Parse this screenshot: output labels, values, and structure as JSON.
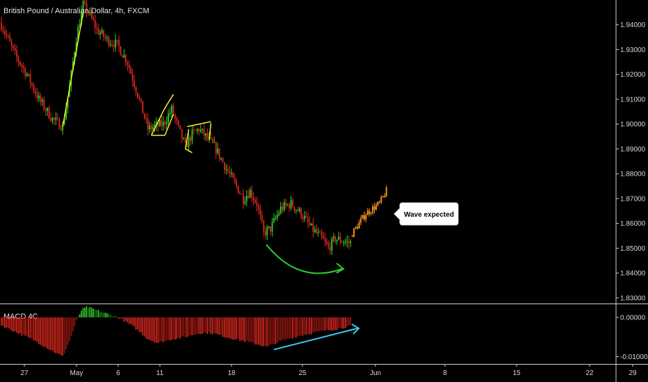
{
  "chart_data": {
    "type": "candlestick",
    "title": "British Pound / Australian Dollar, 4h, FXCM",
    "price_axis": {
      "ticks": [
        1.94,
        1.93,
        1.92,
        1.91,
        1.9,
        1.89,
        1.88,
        1.87,
        1.86,
        1.85,
        1.84,
        1.83
      ],
      "tick_labels": [
        "1.94000",
        "1.93000",
        "1.92000",
        "1.91000",
        "1.90000",
        "1.89000",
        "1.88000",
        "1.87000",
        "1.86000",
        "1.85000",
        "1.84000",
        "1.83000"
      ],
      "range": [
        1.828,
        1.95
      ]
    },
    "date_axis": {
      "labels": [
        "27",
        "May",
        "6",
        "11",
        "18",
        "25",
        "Jun",
        "8",
        "15",
        "22",
        "29"
      ]
    },
    "colors": {
      "up": "#36d12a",
      "down": "#e0281e",
      "projection": "#f7931a",
      "pattern": "#f4f22a",
      "arc": "#2ad12f",
      "divergence": "#3cc8f0"
    },
    "price_path": [
      {
        "bar": 0,
        "close": 1.94
      },
      {
        "bar": 8,
        "close": 1.928
      },
      {
        "bar": 15,
        "close": 1.92
      },
      {
        "bar": 22,
        "close": 1.91
      },
      {
        "bar": 30,
        "close": 1.902
      },
      {
        "bar": 36,
        "close": 1.899
      },
      {
        "bar": 40,
        "close": 1.915
      },
      {
        "bar": 44,
        "close": 1.935
      },
      {
        "bar": 48,
        "close": 1.948
      },
      {
        "bar": 52,
        "close": 1.944
      },
      {
        "bar": 56,
        "close": 1.938
      },
      {
        "bar": 62,
        "close": 1.934
      },
      {
        "bar": 68,
        "close": 1.932
      },
      {
        "bar": 74,
        "close": 1.925
      },
      {
        "bar": 80,
        "close": 1.912
      },
      {
        "bar": 86,
        "close": 1.898
      },
      {
        "bar": 90,
        "close": 1.899
      },
      {
        "bar": 95,
        "close": 1.9
      },
      {
        "bar": 100,
        "close": 1.906
      },
      {
        "bar": 104,
        "close": 1.898
      },
      {
        "bar": 108,
        "close": 1.891
      },
      {
        "bar": 112,
        "close": 1.896
      },
      {
        "bar": 116,
        "close": 1.898
      },
      {
        "bar": 120,
        "close": 1.895
      },
      {
        "bar": 126,
        "close": 1.89
      },
      {
        "bar": 132,
        "close": 1.882
      },
      {
        "bar": 138,
        "close": 1.875
      },
      {
        "bar": 142,
        "close": 1.87
      },
      {
        "bar": 146,
        "close": 1.873
      },
      {
        "bar": 150,
        "close": 1.868
      },
      {
        "bar": 154,
        "close": 1.856
      },
      {
        "bar": 158,
        "close": 1.858
      },
      {
        "bar": 164,
        "close": 1.866
      },
      {
        "bar": 170,
        "close": 1.868
      },
      {
        "bar": 176,
        "close": 1.864
      },
      {
        "bar": 182,
        "close": 1.858
      },
      {
        "bar": 188,
        "close": 1.854
      },
      {
        "bar": 192,
        "close": 1.85
      },
      {
        "bar": 196,
        "close": 1.854
      },
      {
        "bar": 200,
        "close": 1.853
      },
      {
        "bar": 205,
        "close": 1.852
      }
    ],
    "projection_path": [
      {
        "bar": 206,
        "close": 1.856
      },
      {
        "bar": 210,
        "close": 1.86
      },
      {
        "bar": 214,
        "close": 1.864
      },
      {
        "bar": 218,
        "close": 1.866
      },
      {
        "bar": 222,
        "close": 1.868
      },
      {
        "bar": 226,
        "close": 1.873
      }
    ],
    "annotation": {
      "text": "Wave expected"
    },
    "indicator": {
      "name": "MACD 4C",
      "ticks": [
        0.0,
        -0.01
      ],
      "tick_labels": [
        "0.00000",
        "-0.01000"
      ],
      "range": [
        -0.0115,
        0.003
      ],
      "histogram": [
        {
          "bar": 0,
          "value": -0.002
        },
        {
          "bar": 10,
          "value": -0.004
        },
        {
          "bar": 20,
          "value": -0.006
        },
        {
          "bar": 30,
          "value": -0.0085
        },
        {
          "bar": 36,
          "value": -0.01
        },
        {
          "bar": 40,
          "value": -0.006
        },
        {
          "bar": 44,
          "value": -0.001
        },
        {
          "bar": 47,
          "value": 0.0018
        },
        {
          "bar": 50,
          "value": 0.0026
        },
        {
          "bar": 55,
          "value": 0.002
        },
        {
          "bar": 60,
          "value": 0.0012
        },
        {
          "bar": 66,
          "value": 0.0004
        },
        {
          "bar": 70,
          "value": -0.0003
        },
        {
          "bar": 78,
          "value": -0.0025
        },
        {
          "bar": 86,
          "value": -0.0055
        },
        {
          "bar": 92,
          "value": -0.0065
        },
        {
          "bar": 100,
          "value": -0.0055
        },
        {
          "bar": 108,
          "value": -0.005
        },
        {
          "bar": 116,
          "value": -0.004
        },
        {
          "bar": 124,
          "value": -0.004
        },
        {
          "bar": 132,
          "value": -0.005
        },
        {
          "bar": 142,
          "value": -0.006
        },
        {
          "bar": 150,
          "value": -0.0068
        },
        {
          "bar": 156,
          "value": -0.0075
        },
        {
          "bar": 164,
          "value": -0.006
        },
        {
          "bar": 172,
          "value": -0.005
        },
        {
          "bar": 180,
          "value": -0.0042
        },
        {
          "bar": 188,
          "value": -0.0035
        },
        {
          "bar": 196,
          "value": -0.003
        },
        {
          "bar": 205,
          "value": -0.0022
        }
      ]
    }
  }
}
